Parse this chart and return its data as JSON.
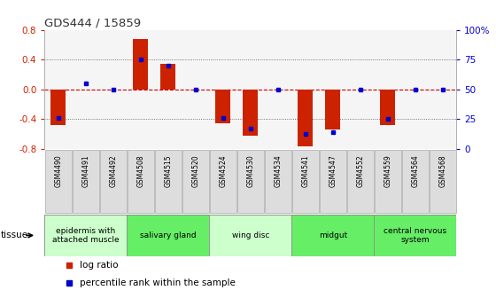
{
  "title": "GDS444 / 15859",
  "samples": [
    "GSM4490",
    "GSM4491",
    "GSM4492",
    "GSM4508",
    "GSM4515",
    "GSM4520",
    "GSM4524",
    "GSM4530",
    "GSM4534",
    "GSM4541",
    "GSM4547",
    "GSM4552",
    "GSM4559",
    "GSM4564",
    "GSM4568"
  ],
  "log_ratio": [
    -0.48,
    0.0,
    0.0,
    0.68,
    0.34,
    0.0,
    -0.46,
    -0.62,
    0.0,
    -0.76,
    -0.54,
    0.0,
    -0.48,
    0.0,
    0.0
  ],
  "percentile": [
    26,
    55,
    50,
    75,
    70,
    50,
    26,
    17,
    50,
    13,
    14,
    50,
    25,
    50,
    50
  ],
  "ylim": [
    -0.8,
    0.8
  ],
  "yticks_left": [
    -0.8,
    -0.4,
    0.0,
    0.4,
    0.8
  ],
  "right_yticks_pct": [
    0,
    25,
    50,
    75,
    100
  ],
  "right_ylabels": [
    "0",
    "25",
    "50",
    "75",
    "100%"
  ],
  "bar_color": "#cc2200",
  "percentile_color": "#0000cc",
  "dotted_color": "#555555",
  "zero_line_color": "#cc0000",
  "title_color": "#333333",
  "left_tick_color": "#cc2200",
  "right_tick_color": "#0000cc",
  "sample_box_color": "#dddddd",
  "sample_box_edge": "#aaaaaa",
  "tissue_groups": [
    {
      "label": "epidermis with\nattached muscle",
      "start": 0,
      "end": 3,
      "color": "#ccffcc"
    },
    {
      "label": "salivary gland",
      "start": 3,
      "end": 6,
      "color": "#66ee66"
    },
    {
      "label": "wing disc",
      "start": 6,
      "end": 9,
      "color": "#ccffcc"
    },
    {
      "label": "midgut",
      "start": 9,
      "end": 12,
      "color": "#66ee66"
    },
    {
      "label": "central nervous\nsystem",
      "start": 12,
      "end": 15,
      "color": "#66ee66"
    }
  ],
  "legend_items": [
    {
      "label": "log ratio",
      "color": "#cc2200"
    },
    {
      "label": "percentile rank within the sample",
      "color": "#0000cc"
    }
  ],
  "tissue_label": "tissue",
  "bar_width": 0.55
}
